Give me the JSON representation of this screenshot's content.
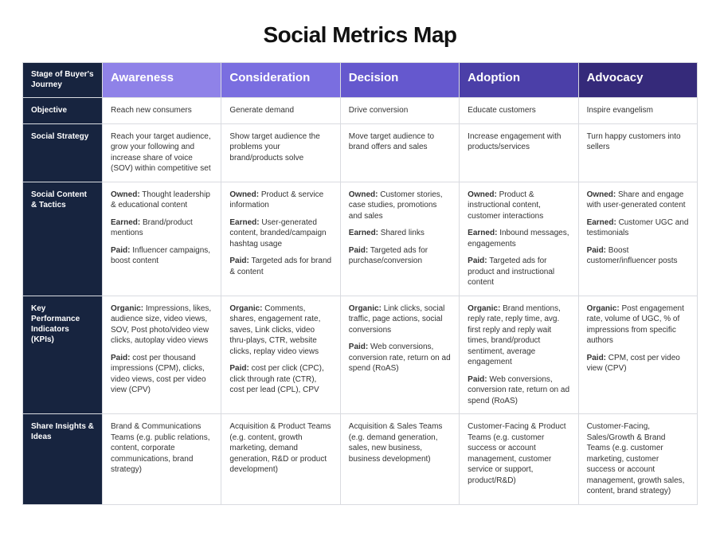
{
  "page": {
    "title": "Social Metrics Map",
    "title_fontsize": 28,
    "title_color": "#111111",
    "background_color": "#ffffff",
    "border_color": "#d9dbe0",
    "row_header_bg": "#17243f",
    "row_header_text": "#ffffff",
    "cell_fontsize": 10,
    "header_fontsize": 15
  },
  "corner_label": "Stage of Buyer's Journey",
  "stages": [
    {
      "id": "awareness",
      "label": "Awareness",
      "bg": "#8f82e8"
    },
    {
      "id": "consideration",
      "label": "Consideration",
      "bg": "#7a6ee0"
    },
    {
      "id": "decision",
      "label": "Decision",
      "bg": "#6558ce"
    },
    {
      "id": "adoption",
      "label": "Adoption",
      "bg": "#4b3fa8"
    },
    {
      "id": "advocacy",
      "label": "Advocacy",
      "bg": "#352a7a"
    }
  ],
  "rows": [
    {
      "id": "objective",
      "label": "Objective",
      "cells": [
        [
          {
            "text": "Reach new consumers"
          }
        ],
        [
          {
            "text": "Generate demand"
          }
        ],
        [
          {
            "text": "Drive conversion"
          }
        ],
        [
          {
            "text": "Educate customers"
          }
        ],
        [
          {
            "text": "Inspire evangelism"
          }
        ]
      ]
    },
    {
      "id": "social-strategy",
      "label": "Social Strategy",
      "cells": [
        [
          {
            "text": "Reach your target audience, grow your following and increase share of voice (SOV) within competitive set"
          }
        ],
        [
          {
            "text": "Show target audience the problems your brand/products solve"
          }
        ],
        [
          {
            "text": "Move target audience to brand offers and sales"
          }
        ],
        [
          {
            "text": "Increase engagement with products/services"
          }
        ],
        [
          {
            "text": "Turn happy customers into sellers"
          }
        ]
      ]
    },
    {
      "id": "social-content-tactics",
      "label": "Social Content & Tactics",
      "cells": [
        [
          {
            "label": "Owned:",
            "text": "Thought leadership & educational content"
          },
          {
            "label": "Earned:",
            "text": "Brand/product mentions"
          },
          {
            "label": "Paid:",
            "text": "Influencer campaigns, boost content"
          }
        ],
        [
          {
            "label": "Owned:",
            "text": "Product & service information"
          },
          {
            "label": "Earned:",
            "text": "User-generated content, branded/campaign hashtag usage"
          },
          {
            "label": "Paid:",
            "text": "Targeted ads for brand & content"
          }
        ],
        [
          {
            "label": "Owned:",
            "text": "Customer stories, case studies, promotions and sales"
          },
          {
            "label": "Earned:",
            "text": "Shared links"
          },
          {
            "label": "Paid:",
            "text": "Targeted ads for purchase/conversion"
          }
        ],
        [
          {
            "label": "Owned:",
            "text": "Product & instructional content, customer interactions"
          },
          {
            "label": "Earned:",
            "text": "Inbound messages, engagements"
          },
          {
            "label": "Paid:",
            "text": "Targeted ads for product and instructional content"
          }
        ],
        [
          {
            "label": "Owned:",
            "text": "Share and engage with user-generated content"
          },
          {
            "label": "Earned:",
            "text": "Customer UGC and testimonials"
          },
          {
            "label": "Paid:",
            "text": "Boost customer/influencer posts"
          }
        ]
      ]
    },
    {
      "id": "kpis",
      "label": "Key Performance Indicators (KPIs)",
      "cells": [
        [
          {
            "label": "Organic:",
            "text": "Impressions, likes, audience size, video views, SOV, Post photo/video view clicks, autoplay video views"
          },
          {
            "label": "Paid:",
            "text": "cost per thousand impressions (CPM), clicks, video views, cost per video view (CPV)"
          }
        ],
        [
          {
            "label": "Organic:",
            "text": "Comments, shares, engagement rate, saves, Link clicks, video thru-plays, CTR, website clicks, replay video views"
          },
          {
            "label": "Paid:",
            "text": "cost per click (CPC), click through rate (CTR), cost per lead (CPL), CPV"
          }
        ],
        [
          {
            "label": "Organic:",
            "text": "Link clicks, social traffic, page actions, social conversions"
          },
          {
            "label": "Paid:",
            "text": "Web conversions, conversion rate, return on ad spend (RoAS)"
          }
        ],
        [
          {
            "label": "Organic:",
            "text": "Brand mentions, reply rate, reply time, avg. first reply and reply wait times, brand/product sentiment, average engagement"
          },
          {
            "label": "Paid:",
            "text": "Web conversions, conversion rate, return on ad spend (RoAS)"
          }
        ],
        [
          {
            "label": "Organic:",
            "text": "Post engagement rate, volume of UGC, % of impressions from specific authors"
          },
          {
            "label": "Paid:",
            "text": "CPM, cost per video view (CPV)"
          }
        ]
      ]
    },
    {
      "id": "share-insights",
      "label": "Share Insights & Ideas",
      "cells": [
        [
          {
            "text": "Brand & Communications Teams (e.g. public relations, content, corporate communications, brand strategy)"
          }
        ],
        [
          {
            "text": "Acquisition & Product Teams (e.g. content, growth marketing, demand generation, R&D or product development)"
          }
        ],
        [
          {
            "text": "Acquisition & Sales Teams (e.g. demand generation, sales, new business, business development)"
          }
        ],
        [
          {
            "text": "Customer-Facing & Product Teams (e.g. customer success or account management, customer service or support, product/R&D)"
          }
        ],
        [
          {
            "text": "Customer-Facing, Sales/Growth & Brand Teams (e.g. customer marketing, customer success or account management, growth sales, content, brand strategy)"
          }
        ]
      ]
    }
  ]
}
